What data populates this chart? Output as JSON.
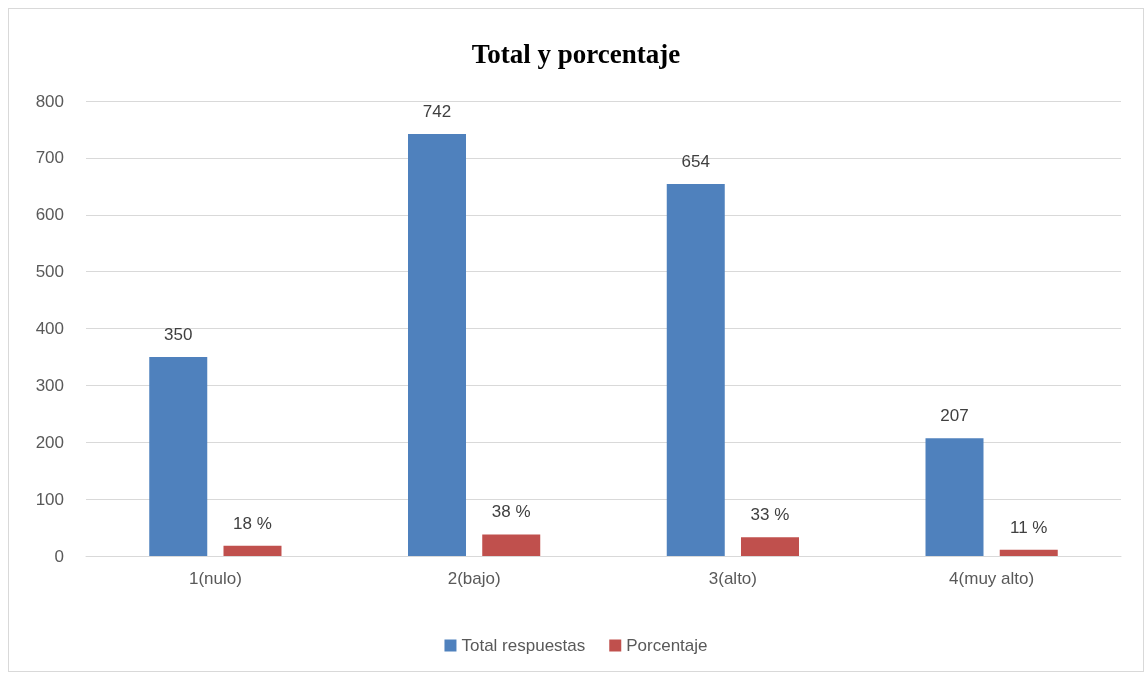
{
  "chart_data": {
    "type": "bar",
    "title": "Total y porcentaje",
    "categories": [
      "1(nulo)",
      "2(bajo)",
      "3(alto)",
      "4(muy alto)"
    ],
    "series": [
      {
        "name": "Total respuestas",
        "color": "#4f81bd",
        "values": [
          350,
          742,
          654,
          207
        ],
        "value_labels": [
          "350",
          "742",
          "654",
          "207"
        ]
      },
      {
        "name": "Porcentaje",
        "color": "#c0504d",
        "values": [
          18,
          38,
          33,
          11
        ],
        "value_labels": [
          "18 %",
          "38 %",
          "33 %",
          "11 %"
        ]
      }
    ],
    "ylim": [
      0,
      800
    ],
    "yticks": [
      0,
      100,
      200,
      300,
      400,
      500,
      600,
      700,
      800
    ],
    "grid": "y",
    "legend": "bottom"
  }
}
